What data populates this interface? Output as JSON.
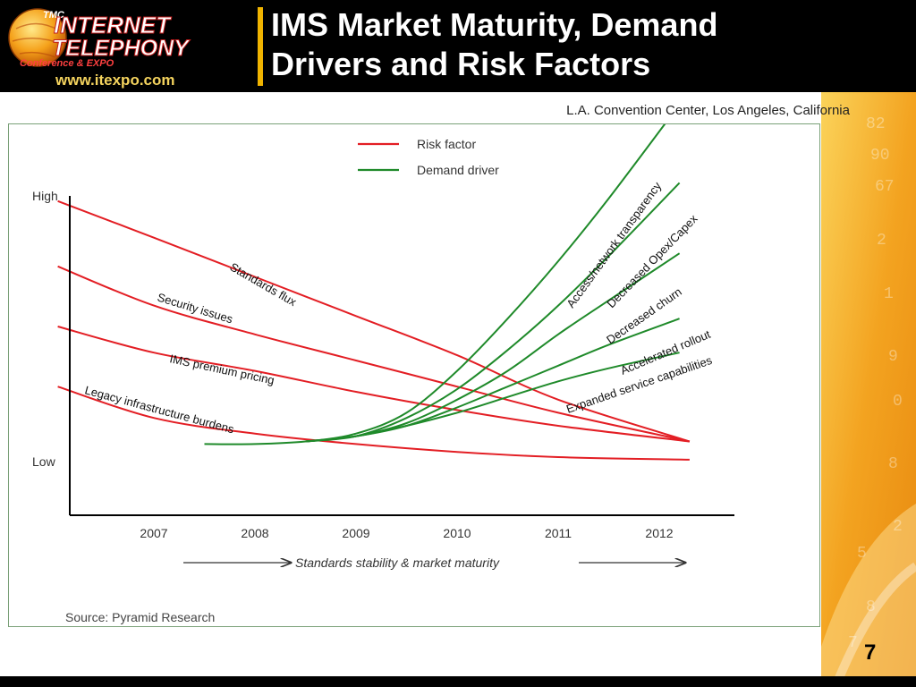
{
  "header": {
    "logo": {
      "badge": "TMC",
      "line1": "INTERNET",
      "line2": "TELEPHONY",
      "line3": "Conference & EXPO",
      "url": "www.itexpo.com"
    },
    "title_line1": "IMS Market Maturity, Demand",
    "title_line2": "Drivers and Risk Factors",
    "accent_color": "#f0b400"
  },
  "location": "L.A. Convention Center, Los Angeles, California",
  "page_number": "7",
  "chart_data": {
    "type": "line",
    "title": "",
    "xlabel": "Standards stability & market maturity",
    "ylabel": "",
    "y_ticks": [
      "High",
      "Low"
    ],
    "ylim": [
      0,
      1
    ],
    "xlim": [
      2006.05,
      2012.8
    ],
    "categories": [
      "2007",
      "2008",
      "2009",
      "2010",
      "2011",
      "2012"
    ],
    "grid": false,
    "legend_position": "top-center",
    "legend": [
      {
        "label": "Risk factor",
        "color": "#e31e24"
      },
      {
        "label": "Demand driver",
        "color": "#1f8a2a"
      }
    ],
    "source": "Source: Pyramid Research",
    "series": [
      {
        "name": "Standards flux",
        "kind": "risk",
        "color": "#e31e24",
        "points": [
          [
            2006.05,
            0.98
          ],
          [
            2007,
            0.84
          ],
          [
            2008,
            0.69
          ],
          [
            2009,
            0.54
          ],
          [
            2010,
            0.39
          ],
          [
            2011,
            0.22
          ],
          [
            2012.3,
            0.06
          ]
        ]
      },
      {
        "name": "Security issues",
        "kind": "risk",
        "color": "#e31e24",
        "points": [
          [
            2006.05,
            0.73
          ],
          [
            2007,
            0.58
          ],
          [
            2008,
            0.47
          ],
          [
            2009,
            0.37
          ],
          [
            2010,
            0.27
          ],
          [
            2011,
            0.17
          ],
          [
            2012.3,
            0.06
          ]
        ]
      },
      {
        "name": "IMS premium pricing",
        "kind": "risk",
        "color": "#e31e24",
        "points": [
          [
            2006.05,
            0.5
          ],
          [
            2007,
            0.4
          ],
          [
            2008,
            0.33
          ],
          [
            2009,
            0.25
          ],
          [
            2010,
            0.18
          ],
          [
            2011,
            0.12
          ],
          [
            2012.3,
            0.06
          ]
        ]
      },
      {
        "name": "Legacy infrastructure burdens",
        "kind": "risk",
        "color": "#e31e24",
        "points": [
          [
            2006.05,
            0.27
          ],
          [
            2007,
            0.15
          ],
          [
            2008,
            0.09
          ],
          [
            2009,
            0.05
          ],
          [
            2010,
            0.02
          ],
          [
            2011,
            0.0
          ],
          [
            2012.3,
            -0.01
          ]
        ]
      },
      {
        "name": "Access/network transparency",
        "kind": "driver",
        "color": "#1f8a2a",
        "points": [
          [
            2007.5,
            0.05
          ],
          [
            2008,
            0.05
          ],
          [
            2008.5,
            0.06
          ],
          [
            2009,
            0.09
          ],
          [
            2009.5,
            0.17
          ],
          [
            2010,
            0.33
          ],
          [
            2010.5,
            0.53
          ],
          [
            2011,
            0.75
          ],
          [
            2011.5,
            0.99
          ],
          [
            2012.2,
            1.35
          ]
        ]
      },
      {
        "name": "Decreased Opex/Capex",
        "kind": "driver",
        "color": "#1f8a2a",
        "points": [
          [
            2008.5,
            0.06
          ],
          [
            2009,
            0.08
          ],
          [
            2009.5,
            0.15
          ],
          [
            2010,
            0.26
          ],
          [
            2010.5,
            0.41
          ],
          [
            2011,
            0.58
          ],
          [
            2011.5,
            0.77
          ],
          [
            2012.2,
            1.05
          ]
        ]
      },
      {
        "name": "Decreased churn",
        "kind": "driver",
        "color": "#1f8a2a",
        "points": [
          [
            2008.5,
            0.06
          ],
          [
            2009,
            0.08
          ],
          [
            2009.5,
            0.13
          ],
          [
            2010,
            0.22
          ],
          [
            2010.5,
            0.33
          ],
          [
            2011,
            0.47
          ],
          [
            2011.5,
            0.6
          ],
          [
            2012.2,
            0.78
          ]
        ]
      },
      {
        "name": "Accelerated rollout",
        "kind": "driver",
        "color": "#1f8a2a",
        "points": [
          [
            2008.5,
            0.06
          ],
          [
            2009,
            0.08
          ],
          [
            2009.5,
            0.12
          ],
          [
            2010,
            0.19
          ],
          [
            2010.5,
            0.27
          ],
          [
            2011,
            0.35
          ],
          [
            2011.5,
            0.43
          ],
          [
            2012.2,
            0.53
          ]
        ]
      },
      {
        "name": "Expanded service capabilities",
        "kind": "driver",
        "color": "#1f8a2a",
        "points": [
          [
            2008.5,
            0.06
          ],
          [
            2009,
            0.08
          ],
          [
            2009.5,
            0.12
          ],
          [
            2010,
            0.17
          ],
          [
            2010.5,
            0.23
          ],
          [
            2011,
            0.29
          ],
          [
            2011.5,
            0.34
          ],
          [
            2012.2,
            0.4
          ]
        ]
      }
    ]
  }
}
